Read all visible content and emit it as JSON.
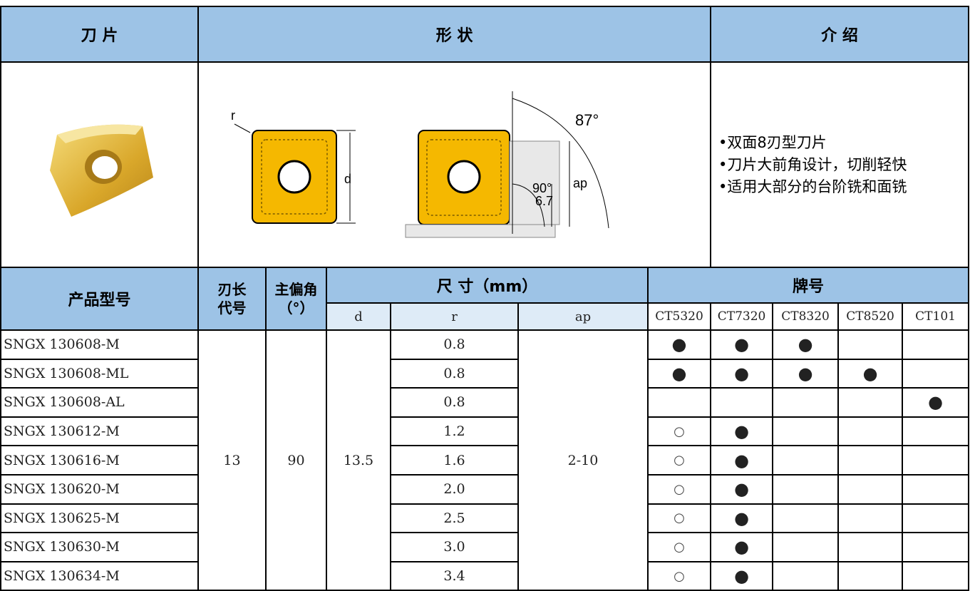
{
  "header": {
    "insert": "刀 片",
    "shape": "形 状",
    "intro": "介 绍"
  },
  "diagram": {
    "r": "r",
    "d": "d",
    "angle_main": "87°",
    "angle_side": "90°",
    "depth": "6.7",
    "ap": "ap"
  },
  "intro": {
    "bullets": [
      "•双面8刃型刀片",
      "•刀片大前角设计，切削轻快",
      "•适用大部分的台阶铣和面铣"
    ]
  },
  "table": {
    "headers": {
      "model": "产品型号",
      "edge": [
        "刃长",
        "代号"
      ],
      "angle": [
        "主偏角",
        "（°）"
      ],
      "size": "尺 寸（mm）",
      "grade": "牌号",
      "d": "d",
      "r": "r",
      "ap": "ap",
      "grades": [
        "CT5320",
        "CT7320",
        "CT8320",
        "CT8520",
        "CT101"
      ]
    },
    "edge": "13",
    "angle": "90",
    "d": "13.5",
    "ap": "2-10",
    "rows": [
      {
        "model": "SNGX 130608-M",
        "r": "0.8",
        "marks": [
          "●",
          "●",
          "●",
          null,
          null
        ]
      },
      {
        "model": "SNGX 130608-ML",
        "r": "0.8",
        "marks": [
          "●",
          "●",
          "●",
          "●",
          null
        ]
      },
      {
        "model": "SNGX 130608-AL",
        "r": "0.8",
        "marks": [
          null,
          null,
          null,
          null,
          "●"
        ]
      },
      {
        "model": "SNGX 130612-M",
        "r": "1.2",
        "marks": [
          "○",
          "●",
          null,
          null,
          null
        ]
      },
      {
        "model": "SNGX 130616-M",
        "r": "1.6",
        "marks": [
          "○",
          "●",
          null,
          null,
          null
        ]
      },
      {
        "model": "SNGX 130620-M",
        "r": "2.0",
        "marks": [
          "○",
          "●",
          null,
          null,
          null
        ]
      },
      {
        "model": "SNGX 130625-M",
        "r": "2.5",
        "marks": [
          "○",
          "●",
          null,
          null,
          null
        ]
      },
      {
        "model": "SNGX 130630-M",
        "r": "3.0",
        "marks": [
          "○",
          "●",
          null,
          null,
          null
        ]
      },
      {
        "model": "SNGX 130634-M",
        "r": "3.4",
        "marks": [
          "○",
          "●",
          null,
          null,
          null
        ]
      }
    ]
  }
}
